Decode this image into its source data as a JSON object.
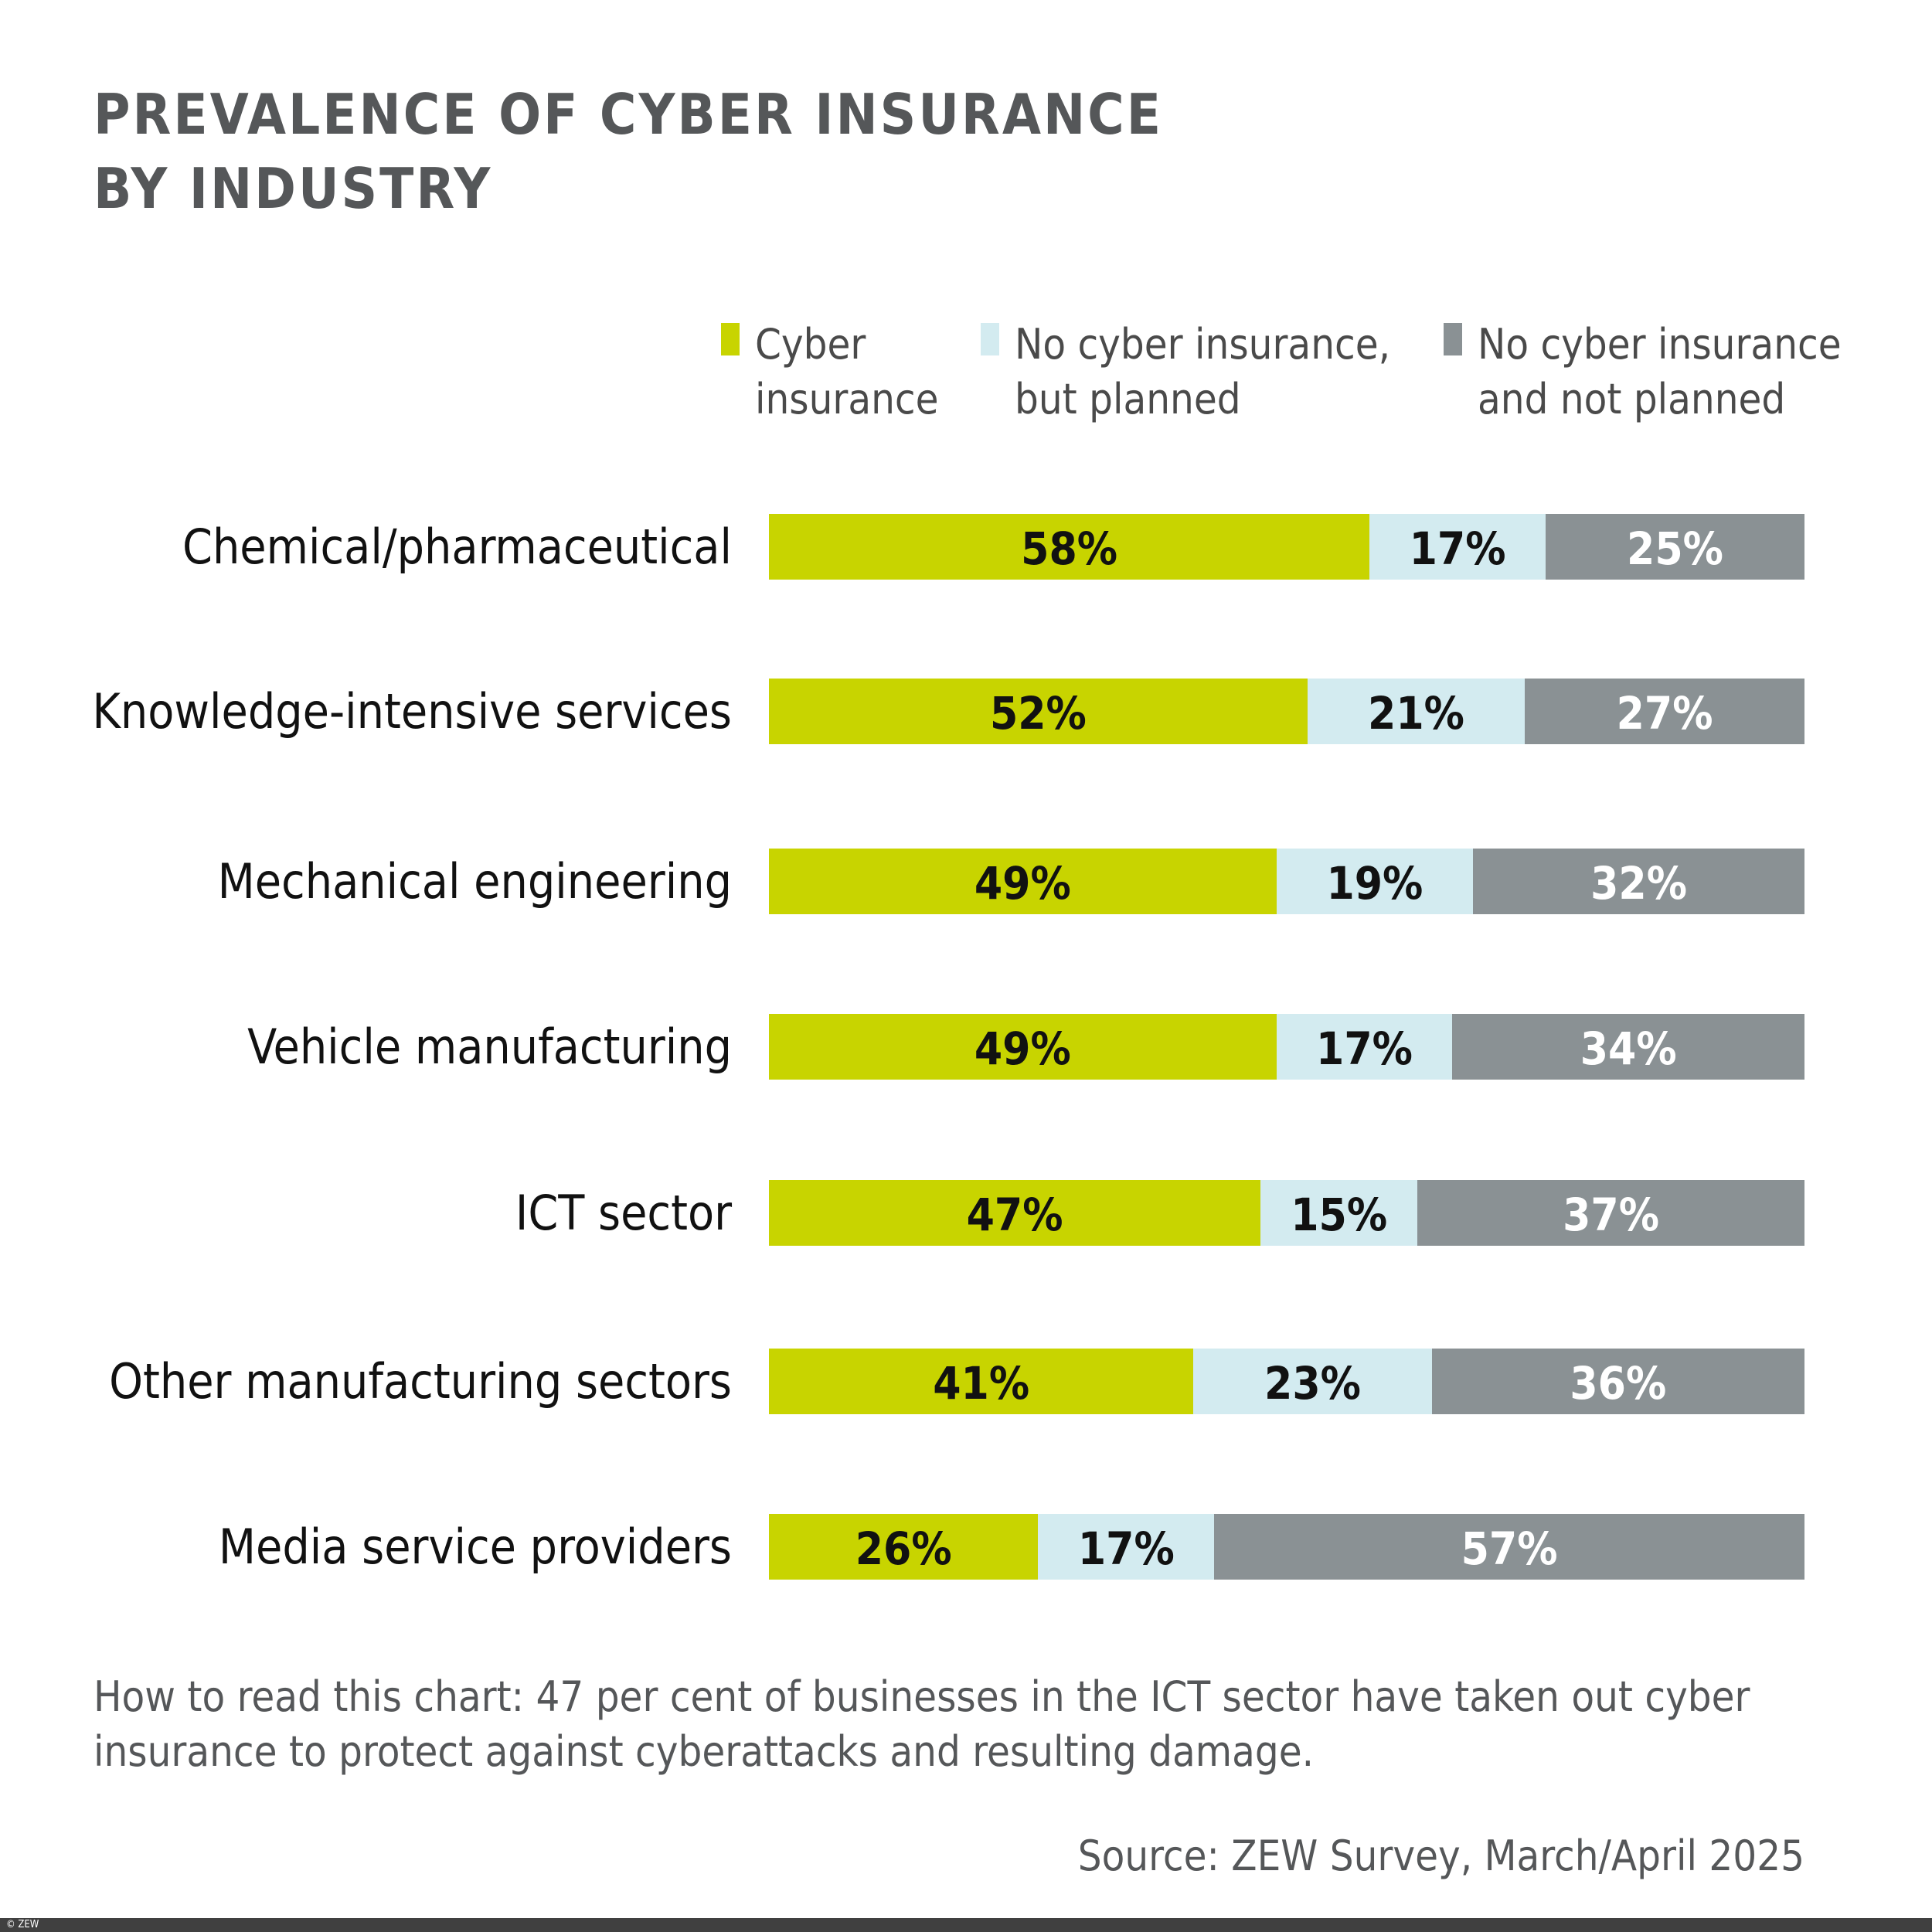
{
  "colors": {
    "cyber": "#c8d400",
    "planned": "#d3ebf0",
    "not_planned": "#8a9194"
  },
  "footer": {
    "copyright": "© ZEW"
  },
  "note": {
    "line1": "How to read this chart: 47 per cent of businesses in the ICT sector have taken out cyber",
    "line2": "insurance to protect against cyberattacks and resulting damage."
  },
  "source": "Source: ZEW Survey, March/April 2025",
  "chart_data": {
    "type": "bar",
    "orientation": "horizontal-stacked-100",
    "title": "PREVALENCE OF CYBER INSURANCE BY INDUSTRY",
    "title_lines": [
      "PREVALENCE OF CYBER INSURANCE",
      "BY INDUSTRY"
    ],
    "legend_placement": "top-right",
    "grid": false,
    "categories": [
      "Chemical/pharmaceutical",
      "Knowledge-intensive services",
      "Mechanical engineering",
      "Vehicle manufacturing",
      "ICT sector",
      "Other manufacturing sectors",
      "Media service providers"
    ],
    "series": [
      {
        "name": "Cyber insurance",
        "legend_lines": [
          "Cyber",
          "insurance"
        ],
        "color": "#c8d400",
        "label_color": "#111111",
        "values": [
          58,
          52,
          49,
          49,
          47,
          41,
          26
        ]
      },
      {
        "name": "No cyber insurance, but planned",
        "legend_lines": [
          "No cyber insurance,",
          "but planned"
        ],
        "color": "#d3ebf0",
        "label_color": "#111111",
        "values": [
          17,
          21,
          19,
          17,
          15,
          23,
          17
        ]
      },
      {
        "name": "No cyber insurance and not planned",
        "legend_lines": [
          "No cyber insurance",
          "and not planned"
        ],
        "color": "#8a9194",
        "label_color": "#ffffff",
        "values": [
          25,
          27,
          32,
          34,
          37,
          36,
          57
        ]
      }
    ],
    "unit": "%"
  }
}
